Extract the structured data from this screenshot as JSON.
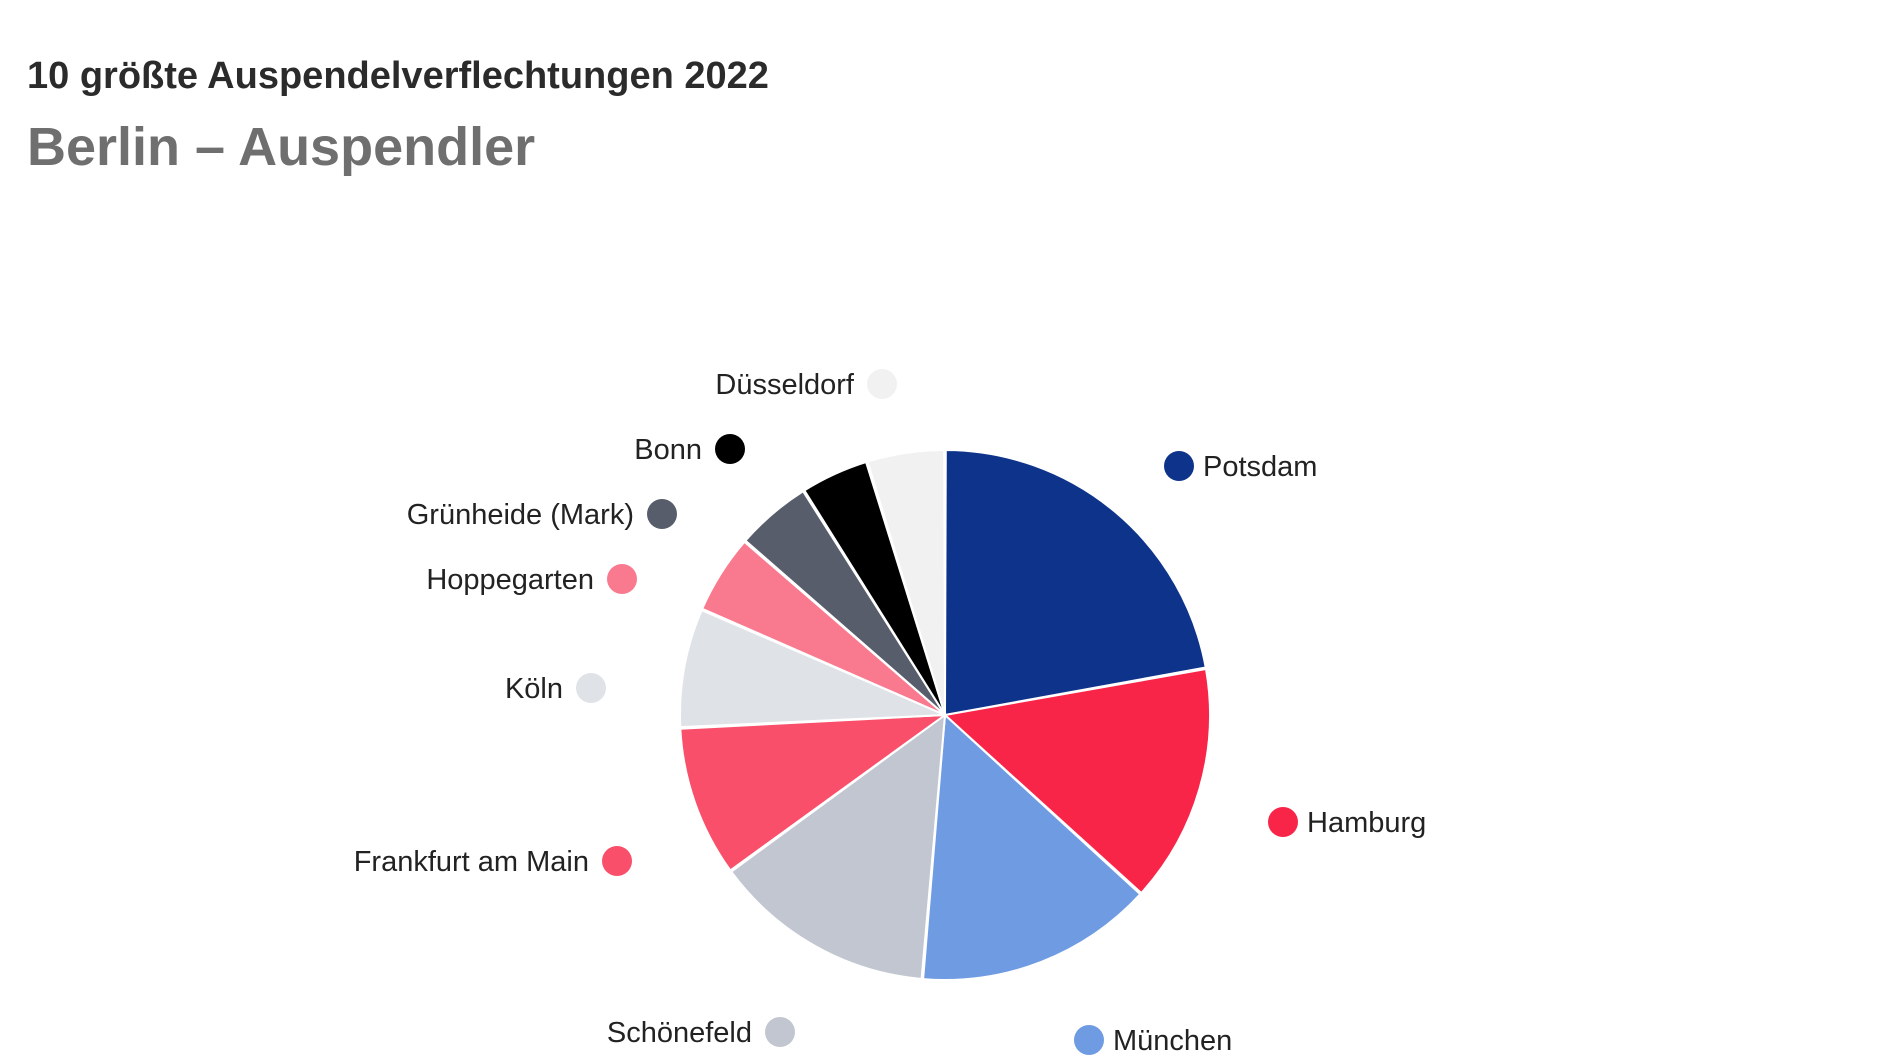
{
  "header": {
    "subtitle": "10 größte Auspendelverflechtungen 2022",
    "title": "Berlin – Auspendler"
  },
  "chart_data": {
    "type": "pie",
    "title": "Berlin – Auspendler",
    "subtitle": "10 größte Auspendelverflechtungen 2022",
    "legend": "labels-around-pie",
    "slices": [
      {
        "label": "Potsdam",
        "value": 22.8,
        "color": "#0e338b"
      },
      {
        "label": "Hamburg",
        "value": 15.0,
        "color": "#f92548"
      },
      {
        "label": "München",
        "value": 15.0,
        "color": "#6f9be3"
      },
      {
        "label": "Schönefeld",
        "value": 14.0,
        "color": "#c1c6d1"
      },
      {
        "label": "Frankfurt am Main",
        "value": 9.5,
        "color": "#f94f6a"
      },
      {
        "label": "Köln",
        "value": 7.5,
        "color": "#dfe2e7"
      },
      {
        "label": "Hoppegarten",
        "value": 5.0,
        "color": "#f97a8e"
      },
      {
        "label": "Grünheide (Mark)",
        "value": 4.8,
        "color": "#575d6b"
      },
      {
        "label": "Bonn",
        "value": 4.3,
        "color": "#000000"
      },
      {
        "label": "Düsseldorf",
        "value": 4.9,
        "color": "#f1f1f1"
      }
    ]
  }
}
